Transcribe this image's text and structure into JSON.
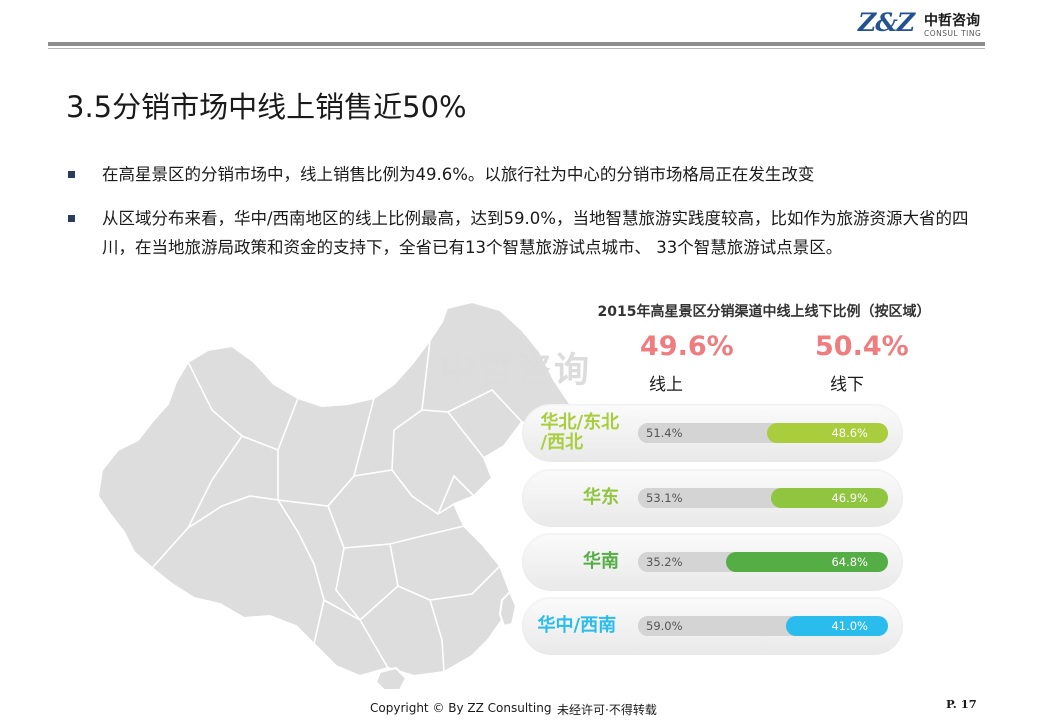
{
  "logo": {
    "mark": "Z&Z",
    "name_cn": "中哲咨询",
    "name_en": "CONSUL TING"
  },
  "page_title": "3.5分销市场中线上销售近50%",
  "bullets": [
    "在高星景区的分销市场中，线上销售比例为49.6%。以旅行社为中心的分销市场格局正在发生改变",
    "从区域分布来看，华中/西南地区的线上比例最高，达到59.0%，当地智慧旅游实践度较高，比如作为旅游资源大省的四川，在当地旅游局政策和资金的支持下，全省已有13个智慧旅游试点城市、 33个智慧旅游试点景区。"
  ],
  "watermark": "中哲咨询",
  "colors": {
    "bullet": "#2b3d5c",
    "total": "#ef7c7f",
    "north": "#a9cd3d",
    "east": "#8fc53f",
    "south": "#55ad46",
    "central": "#2abcec",
    "map_fill": "#dddddd",
    "map_border": "#ffffff"
  },
  "chart_data": {
    "type": "bar",
    "stacked": true,
    "orientation": "horizontal",
    "title": "2015年高星景区分销渠道中线上线下比例（按区域）",
    "totals": [
      {
        "value_label": "49.6%",
        "label": "线上"
      },
      {
        "value_label": "50.4%",
        "label": "线下"
      }
    ],
    "categories": [
      "华北/东北/西北",
      "华东",
      "华南",
      "华中/西南"
    ],
    "category_lines": [
      [
        "华北/东北",
        "/西北"
      ],
      [
        "华东"
      ],
      [
        "华南"
      ],
      [
        "华中/西南"
      ]
    ],
    "series": [
      {
        "name": "线上",
        "values": [
          51.4,
          53.1,
          35.2,
          59.0
        ],
        "labels": [
          "51.4%",
          "53.1%",
          "35.2%",
          "59.0%"
        ],
        "color": "#d4d4d4"
      },
      {
        "name": "线下",
        "values": [
          48.6,
          46.9,
          64.8,
          41.0
        ],
        "labels": [
          "48.6%",
          "46.9%",
          "64.8%",
          "41.0%"
        ],
        "colors": [
          "#a9cd3d",
          "#8fc53f",
          "#55ad46",
          "#2abcec"
        ]
      }
    ],
    "xlim": [
      0,
      100
    ]
  },
  "footer": {
    "copyright": "Copyright © By  ZZ Consulting",
    "notice": "未经许可·不得转载",
    "page": "P. 17"
  }
}
